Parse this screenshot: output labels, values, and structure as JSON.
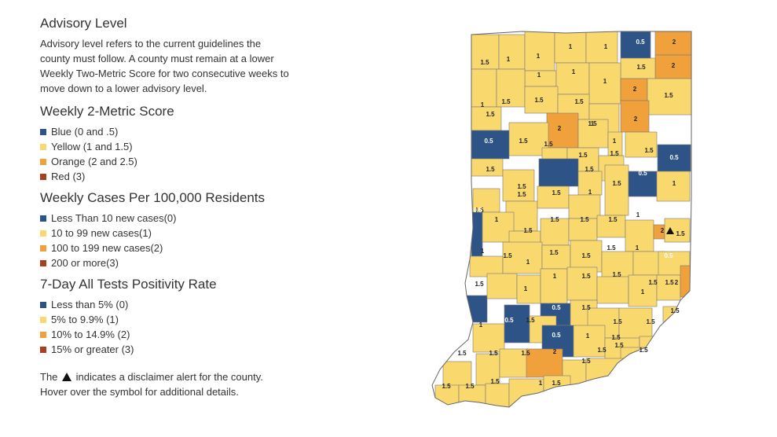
{
  "legend": {
    "advisory": {
      "title": "Advisory Level",
      "description": "Advisory level refers to the current guidelines the county must follow. A county must remain at a lower Weekly Two-Metric Score for two consecutive weeks to move down to a lower advisory level."
    },
    "sections": [
      {
        "title": "Weekly 2-Metric Score",
        "items": [
          "Blue (0 and .5)",
          "Yellow (1 and 1.5)",
          "Orange (2 and 2.5)",
          "Red (3)"
        ]
      },
      {
        "title": "Weekly Cases Per 100,000 Residents",
        "items": [
          "Less Than 10 new cases(0)",
          "10 to 99 new cases(1)",
          "100 to 199 new cases(2)",
          "200 or more(3)"
        ]
      },
      {
        "title": "7-Day All Tests Positivity Rate",
        "items": [
          "Less than 5% (0)",
          "5% to 9.9% (1)",
          "10% to 14.9% (2)",
          "15% or greater (3)"
        ]
      }
    ],
    "footnote_prefix": "The",
    "footnote_suffix": "indicates a disclaimer alert for the county.",
    "footnote_line2": "Hover over the symbol for additional details."
  },
  "colors": {
    "blue": "#2e5386",
    "yellow": "#f9d96e",
    "orange": "#f0a13c",
    "red": "#a83f1e"
  },
  "map": {
    "state": "Indiana",
    "counties": [
      {
        "score": "1.5",
        "level": "yellow"
      },
      {
        "score": "1",
        "level": "yellow"
      },
      {
        "score": "1",
        "level": "yellow"
      },
      {
        "score": "1",
        "level": "yellow"
      },
      {
        "score": "1",
        "level": "yellow"
      },
      {
        "score": "0.5",
        "level": "blue"
      },
      {
        "score": "2",
        "level": "orange"
      },
      {
        "score": "2",
        "level": "orange"
      },
      {
        "score": "1.5",
        "level": "yellow"
      },
      {
        "score": "1",
        "level": "yellow"
      },
      {
        "score": "1",
        "level": "yellow"
      },
      {
        "score": "1",
        "level": "yellow"
      },
      {
        "score": "2",
        "level": "orange"
      },
      {
        "score": "1.5",
        "level": "yellow"
      },
      {
        "score": "1",
        "level": "yellow"
      },
      {
        "score": "1.5",
        "level": "yellow"
      },
      {
        "score": "1.5",
        "level": "yellow"
      },
      {
        "score": "1.5",
        "level": "yellow"
      },
      {
        "score": "2",
        "level": "orange"
      },
      {
        "score": "1",
        "level": "yellow"
      },
      {
        "score": "1.5",
        "level": "yellow"
      },
      {
        "score": "2",
        "level": "orange"
      },
      {
        "score": "1.5",
        "level": "yellow"
      },
      {
        "score": "1",
        "level": "yellow"
      },
      {
        "score": "0.5",
        "level": "blue"
      },
      {
        "score": "1.5",
        "level": "yellow"
      },
      {
        "score": "1.5",
        "level": "yellow"
      },
      {
        "score": "1.5",
        "level": "yellow"
      },
      {
        "score": "1.5",
        "level": "yellow"
      },
      {
        "score": "0.5",
        "level": "blue"
      },
      {
        "score": "1.5",
        "level": "yellow"
      },
      {
        "score": "1.5",
        "level": "yellow"
      },
      {
        "score": "0.5",
        "level": "blue"
      },
      {
        "score": "1.5",
        "level": "yellow"
      },
      {
        "score": "1.5",
        "level": "yellow"
      },
      {
        "score": "1.5",
        "level": "yellow"
      },
      {
        "score": "0.5",
        "level": "blue"
      },
      {
        "score": "1",
        "level": "yellow"
      },
      {
        "score": "1.5",
        "level": "yellow"
      },
      {
        "score": "1.5",
        "level": "yellow"
      },
      {
        "score": "1.5",
        "level": "yellow"
      },
      {
        "score": "1",
        "level": "yellow"
      },
      {
        "score": "0.5",
        "level": "blue"
      },
      {
        "score": "1",
        "level": "yellow"
      },
      {
        "score": "1.5",
        "level": "yellow"
      },
      {
        "score": "1.5",
        "level": "yellow"
      },
      {
        "score": "1.5",
        "level": "yellow"
      },
      {
        "score": "1.5",
        "level": "yellow"
      },
      {
        "score": "1",
        "level": "yellow"
      },
      {
        "score": "2",
        "level": "orange",
        "alert": true
      },
      {
        "score": "1.5",
        "level": "yellow"
      },
      {
        "score": "1",
        "level": "yellow"
      },
      {
        "score": "1.5",
        "level": "yellow"
      },
      {
        "score": "1",
        "level": "yellow"
      },
      {
        "score": "1.5",
        "level": "yellow"
      },
      {
        "score": "1.5",
        "level": "yellow"
      },
      {
        "score": "1.5",
        "level": "yellow"
      },
      {
        "score": "1",
        "level": "yellow"
      },
      {
        "score": "0.5",
        "level": "blue"
      },
      {
        "score": "1.5",
        "level": "yellow"
      },
      {
        "score": "1",
        "level": "yellow"
      },
      {
        "score": "1",
        "level": "yellow"
      },
      {
        "score": "1.5",
        "level": "yellow"
      },
      {
        "score": "1.5",
        "level": "yellow"
      },
      {
        "score": "1",
        "level": "yellow"
      },
      {
        "score": "1.5",
        "level": "yellow"
      },
      {
        "score": "2",
        "level": "orange"
      },
      {
        "score": "0.5",
        "level": "blue"
      },
      {
        "score": "1.5",
        "level": "yellow"
      },
      {
        "score": "1",
        "level": "yellow"
      },
      {
        "score": "0.5",
        "level": "blue"
      },
      {
        "score": "1.5",
        "level": "yellow"
      },
      {
        "score": "1.5",
        "level": "yellow"
      },
      {
        "score": "1.5",
        "level": "yellow"
      },
      {
        "score": "0.5",
        "level": "blue"
      },
      {
        "score": "1",
        "level": "yellow"
      },
      {
        "score": "1.5",
        "level": "yellow"
      },
      {
        "score": "1.5",
        "level": "yellow"
      },
      {
        "score": "1.5",
        "level": "yellow"
      },
      {
        "score": "1.5",
        "level": "yellow"
      },
      {
        "score": "1.5",
        "level": "yellow"
      },
      {
        "score": "1.5",
        "level": "yellow"
      },
      {
        "score": "1.5",
        "level": "yellow"
      },
      {
        "score": "1.5",
        "level": "yellow"
      },
      {
        "score": "2",
        "level": "orange"
      },
      {
        "score": "1.5",
        "level": "yellow"
      },
      {
        "score": "1.5",
        "level": "yellow"
      },
      {
        "score": "1.5",
        "level": "yellow"
      },
      {
        "score": "1.5",
        "level": "yellow"
      },
      {
        "score": "1.5",
        "level": "yellow"
      },
      {
        "score": "1",
        "level": "yellow"
      },
      {
        "score": "1.5",
        "level": "yellow"
      }
    ]
  }
}
